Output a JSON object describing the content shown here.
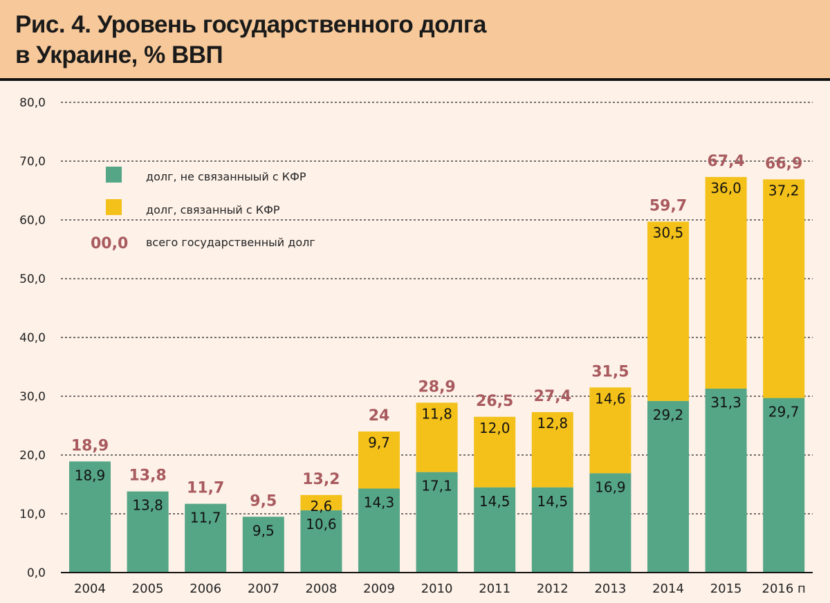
{
  "title_line1": "Рис. 4. Уровень государственного долга",
  "title_line2": "в Украине, % ВВП",
  "colors": {
    "green": "#55a587",
    "yellow": "#f3c11a",
    "total": "#a85a5e",
    "header": "#f7c99a",
    "background": "#fdf1e8"
  },
  "chart_data": {
    "type": "bar",
    "stacked": true,
    "title": "Рис. 4. Уровень государственного долга в Украине, % ВВП",
    "xlabel": "",
    "ylabel": "",
    "ylim": [
      0,
      80
    ],
    "yticks": [
      0,
      10,
      20,
      30,
      40,
      50,
      60,
      70,
      80
    ],
    "ytick_labels": [
      "0,0",
      "10,0",
      "20,0",
      "30,0",
      "40,0",
      "50,0",
      "60,0",
      "70,0",
      "80,0"
    ],
    "grid": true,
    "categories": [
      "2004",
      "2005",
      "2006",
      "2007",
      "2008",
      "2009",
      "2010",
      "2011",
      "2012",
      "2013",
      "2014",
      "2015",
      "2016 п"
    ],
    "series": [
      {
        "name": "долг, не связанныый с КФР",
        "color": "#55a587",
        "values": [
          18.9,
          13.8,
          11.7,
          9.5,
          10.6,
          14.3,
          17.1,
          14.5,
          14.5,
          16.9,
          29.2,
          31.3,
          29.7
        ],
        "labels": [
          "18,9",
          "13,8",
          "11,7",
          "9,5",
          "10,6",
          "14,3",
          "17,1",
          "14,5",
          "14,5",
          "16,9",
          "29,2",
          "31,3",
          "29,7"
        ]
      },
      {
        "name": "долг, связанный с КФР",
        "color": "#f3c11a",
        "values": [
          0,
          0,
          0,
          0,
          2.6,
          9.7,
          11.8,
          12.0,
          12.8,
          14.6,
          30.5,
          36.0,
          37.2
        ],
        "labels": [
          "",
          "",
          "",
          "",
          "2,6",
          "9,7",
          "11,8",
          "12,0",
          "12,8",
          "14,6",
          "30,5",
          "36,0",
          "37,2"
        ]
      }
    ],
    "totals": [
      18.9,
      13.8,
      11.7,
      9.5,
      13.2,
      24,
      28.9,
      26.5,
      27.4,
      31.5,
      59.7,
      67.4,
      66.9
    ],
    "total_labels": [
      "18,9",
      "13,8",
      "11,7",
      "9,5",
      "13,2",
      "24",
      "28,9",
      "26,5",
      "27,4",
      "31,5",
      "59,7",
      "67,4",
      "66,9"
    ],
    "legend": {
      "position": "top-left",
      "items": [
        {
          "label": "долг, не связанныый с КФР",
          "color": "#55a587"
        },
        {
          "label": "долг, связанный с КФР",
          "color": "#f3c11a"
        },
        {
          "label": "всего государственный долг",
          "sample": "00,0"
        }
      ]
    }
  }
}
